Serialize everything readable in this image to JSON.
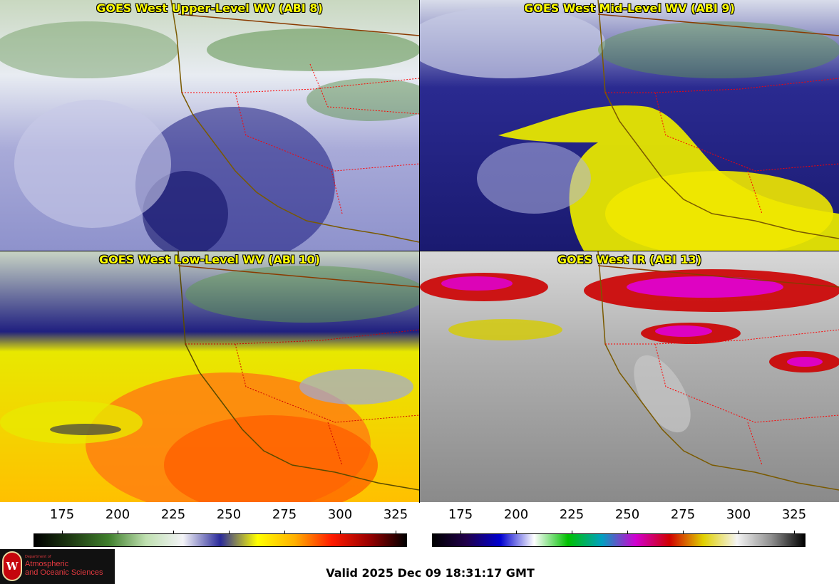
{
  "panels": [
    {
      "title": "GOES West Upper-Level WV (ABI 8)",
      "colormap": "wv"
    },
    {
      "title": "GOES West Mid-Level WV (ABI 9)",
      "colormap": "wv"
    },
    {
      "title": "GOES West Low-Level WV (ABI 10)",
      "colormap": "wv"
    },
    {
      "title": "GOES West IR (ABI 13)",
      "colormap": "ir"
    }
  ],
  "colorbars": {
    "wv": {
      "ticks": [
        "175",
        "200",
        "225",
        "250",
        "275",
        "300",
        "325"
      ],
      "colors": [
        "#000000",
        "#1e3a12",
        "#3f7f2c",
        "#bfe0b0",
        "#f4f4f8",
        "#2a2a9a",
        "#ffff00",
        "#ffb000",
        "#ff1a00",
        "#9a0000",
        "#000000"
      ]
    },
    "ir": {
      "ticks": [
        "175",
        "200",
        "225",
        "250",
        "275",
        "300",
        "325"
      ],
      "colors": [
        "#000000",
        "#20004a",
        "#0000d0",
        "#ffffff",
        "#00c000",
        "#00a0c0",
        "#d000d0",
        "#d00000",
        "#e0d000",
        "#f4f4f4",
        "#909090",
        "#000000"
      ]
    }
  },
  "footer": {
    "valid_text": "Valid 2025 Dec 09 18:31:17 GMT",
    "logo_dept": "Department of",
    "logo_line1": "Atmospheric",
    "logo_line2": "and Oceanic Sciences",
    "logo_letter": "W"
  },
  "colors": {
    "state_borders": "#ff0000",
    "coastline": "#7a5a00",
    "title_text": "#ffff00"
  }
}
